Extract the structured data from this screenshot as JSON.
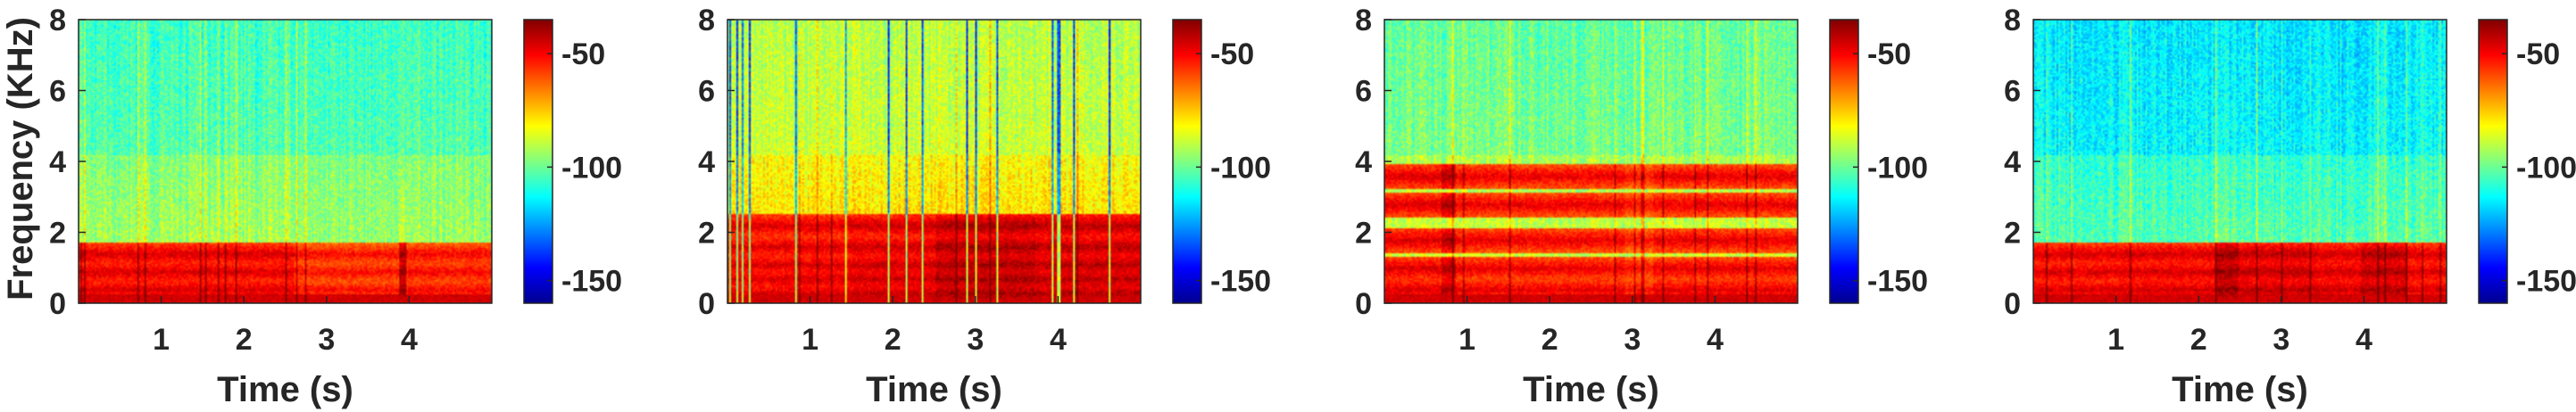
{
  "chart_data": {
    "type": "heatmap",
    "ylabel": "Frequency (KHz)",
    "xlabel": "Time (s)",
    "x_ticks": [
      1,
      2,
      3,
      4
    ],
    "y_ticks": [
      0,
      2,
      4,
      6,
      8
    ],
    "xlim": [
      0,
      5
    ],
    "ylim": [
      0,
      8
    ],
    "colorbar": {
      "ticks": [
        -50,
        -100,
        -150
      ],
      "range": [
        -160,
        -35
      ],
      "colormap": "jet"
    },
    "colormap_stops": [
      "#00008f",
      "#0000ff",
      "#0080ff",
      "#00ffff",
      "#80ff80",
      "#ffff00",
      "#ff8000",
      "#ff0000",
      "#800000"
    ],
    "panels": [
      {
        "xlabel": "Time (s)",
        "ylabel": "Frequency (KHz)",
        "voiced_bands_khz": [
          0.4,
          0.9,
          1.4
        ],
        "hf_level_db": -100,
        "seed": 11,
        "dark_stripes": false
      },
      {
        "xlabel": "Time (s)",
        "ylabel": "",
        "voiced_bands_khz": [
          0.3,
          0.7,
          1.1,
          1.6,
          2.2
        ],
        "hf_level_db": -85,
        "seed": 23,
        "dark_stripes": true
      },
      {
        "xlabel": "Time (s)",
        "ylabel": "",
        "voiced_bands_khz": [
          0.4,
          1.0,
          1.8,
          2.8,
          3.6
        ],
        "hf_level_db": -95,
        "seed": 37,
        "dark_stripes": false
      },
      {
        "xlabel": "Time (s)",
        "ylabel": "",
        "voiced_bands_khz": [
          0.4,
          0.9,
          1.4
        ],
        "hf_level_db": -110,
        "seed": 51,
        "dark_stripes": false
      }
    ]
  }
}
